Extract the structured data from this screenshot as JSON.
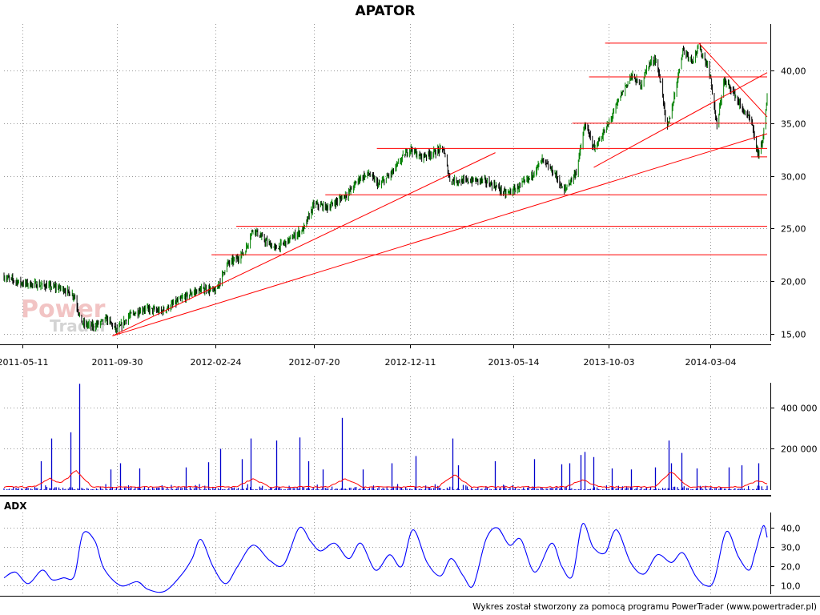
{
  "title": "APATOR",
  "footer": "Wykres został stworzony za pomocą programu PowerTrader (www.powertrader.pl)",
  "watermark": {
    "line1": "Power",
    "line2": "Trader"
  },
  "colors": {
    "up": "#008000",
    "down": "#000000",
    "support": "#ff0000",
    "volume": "#0000cc",
    "volume_ma": "#ff0000",
    "adx": "#0000ff",
    "grid": "#999999"
  },
  "chart_data": [
    {
      "type": "line",
      "name": "price",
      "title": "APATOR",
      "x_ticks": [
        "2011-05-11",
        "2011-09-30",
        "2012-02-24",
        "2012-07-20",
        "2012-12-11",
        "2013-05-14",
        "2013-10-03",
        "2014-03-04"
      ],
      "y_ticks": [
        "15,00",
        "20,00",
        "25,00",
        "30,00",
        "35,00",
        "40,00"
      ],
      "ylim": [
        14.3,
        43.2
      ],
      "xlim": [
        "2011-04-14",
        "2014-05-28"
      ],
      "grid": true,
      "points": [
        [
          "2011-04-14",
          20.4
        ],
        [
          "2011-05-11",
          19.8
        ],
        [
          "2011-06-10",
          19.6
        ],
        [
          "2011-07-10",
          19.3
        ],
        [
          "2011-07-28",
          18.6
        ],
        [
          "2011-08-08",
          16.0
        ],
        [
          "2011-08-25",
          15.7
        ],
        [
          "2011-09-15",
          16.4
        ],
        [
          "2011-09-30",
          15.3
        ],
        [
          "2011-10-18",
          16.7
        ],
        [
          "2011-11-10",
          17.4
        ],
        [
          "2011-12-05",
          17.1
        ],
        [
          "2011-12-25",
          17.9
        ],
        [
          "2012-01-20",
          18.9
        ],
        [
          "2012-02-10",
          19.3
        ],
        [
          "2012-02-24",
          19.0
        ],
        [
          "2012-03-12",
          21.6
        ],
        [
          "2012-03-28",
          22.2
        ],
        [
          "2012-04-08",
          22.8
        ],
        [
          "2012-04-20",
          25.0
        ],
        [
          "2012-05-08",
          23.8
        ],
        [
          "2012-05-24",
          23.1
        ],
        [
          "2012-06-15",
          24.0
        ],
        [
          "2012-07-05",
          25.0
        ],
        [
          "2012-07-20",
          27.3
        ],
        [
          "2012-08-10",
          27.0
        ],
        [
          "2012-09-10",
          28.4
        ],
        [
          "2012-09-25",
          29.7
        ],
        [
          "2012-10-10",
          30.2
        ],
        [
          "2012-10-25",
          29.1
        ],
        [
          "2012-11-15",
          30.4
        ],
        [
          "2012-12-01",
          31.9
        ],
        [
          "2012-12-11",
          32.6
        ],
        [
          "2012-12-25",
          31.8
        ],
        [
          "2013-01-15",
          32.2
        ],
        [
          "2013-01-29",
          32.6
        ],
        [
          "2013-02-08",
          29.6
        ],
        [
          "2013-03-01",
          29.5
        ],
        [
          "2013-03-28",
          29.6
        ],
        [
          "2013-04-18",
          29.0
        ],
        [
          "2013-05-02",
          28.3
        ],
        [
          "2013-05-14",
          28.6
        ],
        [
          "2013-06-06",
          29.7
        ],
        [
          "2013-06-26",
          31.5
        ],
        [
          "2013-07-16",
          30.1
        ],
        [
          "2013-07-28",
          28.5
        ],
        [
          "2013-08-16",
          30.4
        ],
        [
          "2013-08-29",
          34.9
        ],
        [
          "2013-09-12",
          32.6
        ],
        [
          "2013-09-26",
          34.1
        ],
        [
          "2013-10-03",
          34.9
        ],
        [
          "2013-10-21",
          37.6
        ],
        [
          "2013-11-06",
          39.5
        ],
        [
          "2013-11-20",
          38.6
        ],
        [
          "2013-12-02",
          40.6
        ],
        [
          "2013-12-12",
          41.1
        ],
        [
          "2013-12-22",
          38.3
        ],
        [
          "2013-12-29",
          34.2
        ],
        [
          "2014-01-08",
          37.1
        ],
        [
          "2014-01-22",
          42.0
        ],
        [
          "2014-02-05",
          41.0
        ],
        [
          "2014-02-15",
          42.2
        ],
        [
          "2014-02-27",
          40.6
        ],
        [
          "2014-03-04",
          39.5
        ],
        [
          "2014-03-14",
          34.6
        ],
        [
          "2014-03-24",
          39.0
        ],
        [
          "2014-04-05",
          38.3
        ],
        [
          "2014-04-20",
          36.4
        ],
        [
          "2014-05-04",
          35.2
        ],
        [
          "2014-05-14",
          32.0
        ],
        [
          "2014-05-22",
          33.6
        ],
        [
          "2014-05-28",
          37.4
        ]
      ],
      "horizontal_lines": [
        {
          "y": 42.6,
          "from": "2013-09-28",
          "to": "2014-05-28"
        },
        {
          "y": 39.4,
          "from": "2013-09-04",
          "to": "2014-05-28"
        },
        {
          "y": 35.0,
          "from": "2013-08-10",
          "to": "2014-05-28"
        },
        {
          "y": 32.6,
          "from": "2012-10-22",
          "to": "2014-05-28"
        },
        {
          "y": 31.8,
          "from": "2014-05-04",
          "to": "2014-05-28"
        },
        {
          "y": 28.2,
          "from": "2012-08-06",
          "to": "2014-05-28"
        },
        {
          "y": 25.2,
          "from": "2012-03-26",
          "to": "2014-05-28"
        },
        {
          "y": 22.5,
          "from": "2012-02-18",
          "to": "2014-05-28"
        }
      ],
      "trend_lines": [
        {
          "from": [
            "2011-09-23",
            14.8
          ],
          "to": [
            "2013-04-17",
            32.2
          ]
        },
        {
          "from": [
            "2011-09-23",
            14.8
          ],
          "to": [
            "2014-05-28",
            34.0
          ]
        },
        {
          "from": [
            "2013-09-11",
            30.8
          ],
          "to": [
            "2014-05-28",
            39.8
          ]
        },
        {
          "from": [
            "2014-02-15",
            42.6
          ],
          "to": [
            "2014-05-28",
            35.6
          ]
        }
      ]
    },
    {
      "type": "bar",
      "name": "volume",
      "y_ticks": [
        "200 000",
        "400 000"
      ],
      "ylim": [
        0,
        520000
      ],
      "grid": true,
      "spikes": [
        [
          "2011-06-08",
          140000
        ],
        [
          "2011-06-24",
          250000
        ],
        [
          "2011-07-22",
          280000
        ],
        [
          "2011-08-04",
          515000
        ],
        [
          "2011-09-20",
          100000
        ],
        [
          "2011-10-05",
          130000
        ],
        [
          "2011-11-02",
          105000
        ],
        [
          "2012-01-11",
          110000
        ],
        [
          "2012-02-13",
          135000
        ],
        [
          "2012-03-02",
          200000
        ],
        [
          "2012-04-03",
          150000
        ],
        [
          "2012-04-16",
          250000
        ],
        [
          "2012-05-25",
          240000
        ],
        [
          "2012-06-28",
          255000
        ],
        [
          "2012-07-11",
          140000
        ],
        [
          "2012-08-02",
          100000
        ],
        [
          "2012-08-31",
          350000
        ],
        [
          "2012-10-01",
          100000
        ],
        [
          "2012-11-13",
          130000
        ],
        [
          "2012-12-19",
          165000
        ],
        [
          "2013-02-12",
          250000
        ],
        [
          "2013-02-20",
          120000
        ],
        [
          "2013-04-16",
          140000
        ],
        [
          "2013-06-14",
          150000
        ],
        [
          "2013-07-24",
          125000
        ],
        [
          "2013-08-06",
          130000
        ],
        [
          "2013-08-22",
          170000
        ],
        [
          "2013-08-28",
          185000
        ],
        [
          "2013-09-10",
          160000
        ],
        [
          "2013-10-08",
          105000
        ],
        [
          "2013-11-06",
          100000
        ],
        [
          "2013-12-12",
          110000
        ],
        [
          "2014-01-01",
          240000
        ],
        [
          "2014-01-04",
          130000
        ],
        [
          "2014-01-20",
          180000
        ],
        [
          "2014-02-12",
          105000
        ],
        [
          "2014-04-01",
          110000
        ],
        [
          "2014-04-20",
          120000
        ],
        [
          "2014-05-15",
          130000
        ]
      ],
      "moving_average_bumps": [
        [
          "2011-07-30",
          80000
        ],
        [
          "2011-06-22",
          40000
        ],
        [
          "2012-04-20",
          40000
        ],
        [
          "2012-09-05",
          40000
        ],
        [
          "2013-02-15",
          60000
        ],
        [
          "2013-08-25",
          35000
        ],
        [
          "2014-01-05",
          75000
        ],
        [
          "2014-05-15",
          30000
        ]
      ]
    },
    {
      "type": "line",
      "name": "ADX",
      "panel_label": "ADX",
      "y_ticks": [
        "10,0",
        "20,0",
        "30,0",
        "40,0"
      ],
      "ylim": [
        5.5,
        48
      ],
      "grid": true,
      "points": [
        [
          "2011-04-14",
          14
        ],
        [
          "2011-05-01",
          17
        ],
        [
          "2011-05-20",
          11
        ],
        [
          "2011-06-10",
          18
        ],
        [
          "2011-06-25",
          13
        ],
        [
          "2011-07-12",
          14
        ],
        [
          "2011-07-28",
          15
        ],
        [
          "2011-08-10",
          37
        ],
        [
          "2011-08-28",
          33
        ],
        [
          "2011-09-10",
          19
        ],
        [
          "2011-10-05",
          10
        ],
        [
          "2011-10-30",
          12
        ],
        [
          "2011-11-15",
          8
        ],
        [
          "2011-12-10",
          7
        ],
        [
          "2012-01-05",
          16
        ],
        [
          "2012-01-20",
          24
        ],
        [
          "2012-02-02",
          34
        ],
        [
          "2012-02-20",
          20
        ],
        [
          "2012-03-10",
          11
        ],
        [
          "2012-03-28",
          20
        ],
        [
          "2012-04-20",
          31
        ],
        [
          "2012-05-15",
          23
        ],
        [
          "2012-06-05",
          21
        ],
        [
          "2012-06-28",
          40
        ],
        [
          "2012-07-15",
          33
        ],
        [
          "2012-07-30",
          28
        ],
        [
          "2012-08-20",
          32
        ],
        [
          "2012-09-10",
          24
        ],
        [
          "2012-09-28",
          32
        ],
        [
          "2012-10-20",
          18
        ],
        [
          "2012-11-10",
          26
        ],
        [
          "2012-11-28",
          20
        ],
        [
          "2012-12-15",
          39
        ],
        [
          "2013-01-05",
          22
        ],
        [
          "2013-01-25",
          15
        ],
        [
          "2013-02-10",
          24
        ],
        [
          "2013-02-28",
          15
        ],
        [
          "2013-03-15",
          10
        ],
        [
          "2013-04-03",
          34
        ],
        [
          "2013-04-20",
          40
        ],
        [
          "2013-05-08",
          31
        ],
        [
          "2013-05-25",
          34
        ],
        [
          "2013-06-15",
          17
        ],
        [
          "2013-07-10",
          32
        ],
        [
          "2013-07-25",
          20
        ],
        [
          "2013-08-10",
          15
        ],
        [
          "2013-08-25",
          42
        ],
        [
          "2013-09-10",
          30
        ],
        [
          "2013-09-28",
          27
        ],
        [
          "2013-10-15",
          39
        ],
        [
          "2013-11-05",
          22
        ],
        [
          "2013-11-25",
          16
        ],
        [
          "2013-12-15",
          26
        ],
        [
          "2014-01-05",
          22
        ],
        [
          "2014-01-22",
          27
        ],
        [
          "2014-02-10",
          15
        ],
        [
          "2014-02-25",
          10
        ],
        [
          "2014-03-10",
          13
        ],
        [
          "2014-03-28",
          38
        ],
        [
          "2014-04-15",
          25
        ],
        [
          "2014-05-01",
          18
        ],
        [
          "2014-05-10",
          27
        ],
        [
          "2014-05-22",
          41
        ],
        [
          "2014-05-28",
          35
        ]
      ]
    }
  ]
}
